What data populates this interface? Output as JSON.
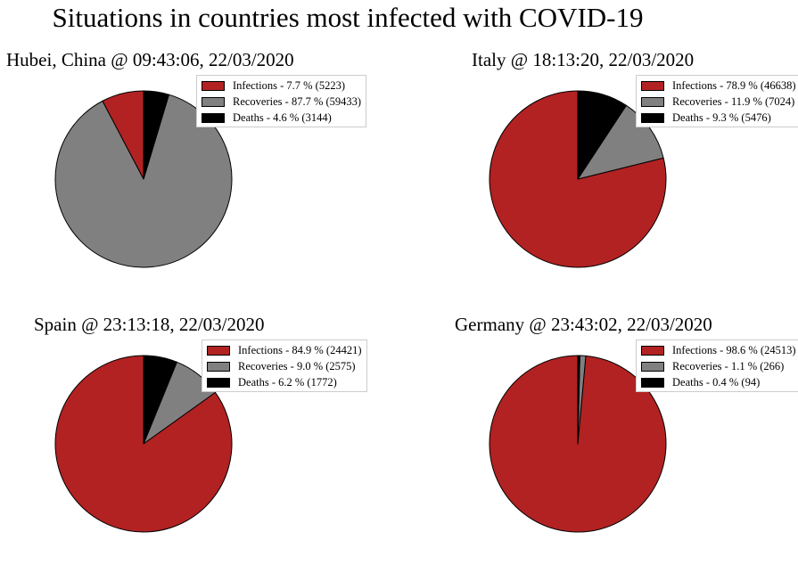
{
  "title": "Situations in countries most infected with COVID-19",
  "colors": {
    "infections": "#b22222",
    "recoveries": "#808080",
    "deaths": "#000000",
    "edge": "#000000"
  },
  "chart_data": [
    {
      "type": "pie",
      "title": "Hubei, China @ 09:43:06, 22/03/2020",
      "legend_position": "top-right",
      "slices": [
        {
          "label": "Infections - 7.7 % (5223)",
          "value": 5223,
          "percent": 7.7
        },
        {
          "label": "Recoveries - 87.7 % (59433)",
          "value": 59433,
          "percent": 87.7
        },
        {
          "label": "Deaths - 4.6 % (3144)",
          "value": 3144,
          "percent": 4.6
        }
      ]
    },
    {
      "type": "pie",
      "title": "Italy @ 18:13:20, 22/03/2020",
      "legend_position": "top-right",
      "slices": [
        {
          "label": "Infections - 78.9 % (46638)",
          "value": 46638,
          "percent": 78.9
        },
        {
          "label": "Recoveries - 11.9 % (7024)",
          "value": 7024,
          "percent": 11.9
        },
        {
          "label": "Deaths - 9.3 % (5476)",
          "value": 5476,
          "percent": 9.3
        }
      ]
    },
    {
      "type": "pie",
      "title": "Spain @ 23:13:18, 22/03/2020",
      "legend_position": "top-right",
      "slices": [
        {
          "label": "Infections - 84.9 % (24421)",
          "value": 24421,
          "percent": 84.9
        },
        {
          "label": "Recoveries - 9.0 % (2575)",
          "value": 2575,
          "percent": 9.0
        },
        {
          "label": "Deaths - 6.2 % (1772)",
          "value": 1772,
          "percent": 6.2
        }
      ]
    },
    {
      "type": "pie",
      "title": "Germany @ 23:43:02, 22/03/2020",
      "legend_position": "top-right",
      "slices": [
        {
          "label": "Infections - 98.6 % (24513)",
          "value": 24513,
          "percent": 98.6
        },
        {
          "label": "Recoveries - 1.1 % (266)",
          "value": 266,
          "percent": 1.1
        },
        {
          "label": "Deaths - 0.4 % (94)",
          "value": 94,
          "percent": 0.4
        }
      ]
    }
  ]
}
